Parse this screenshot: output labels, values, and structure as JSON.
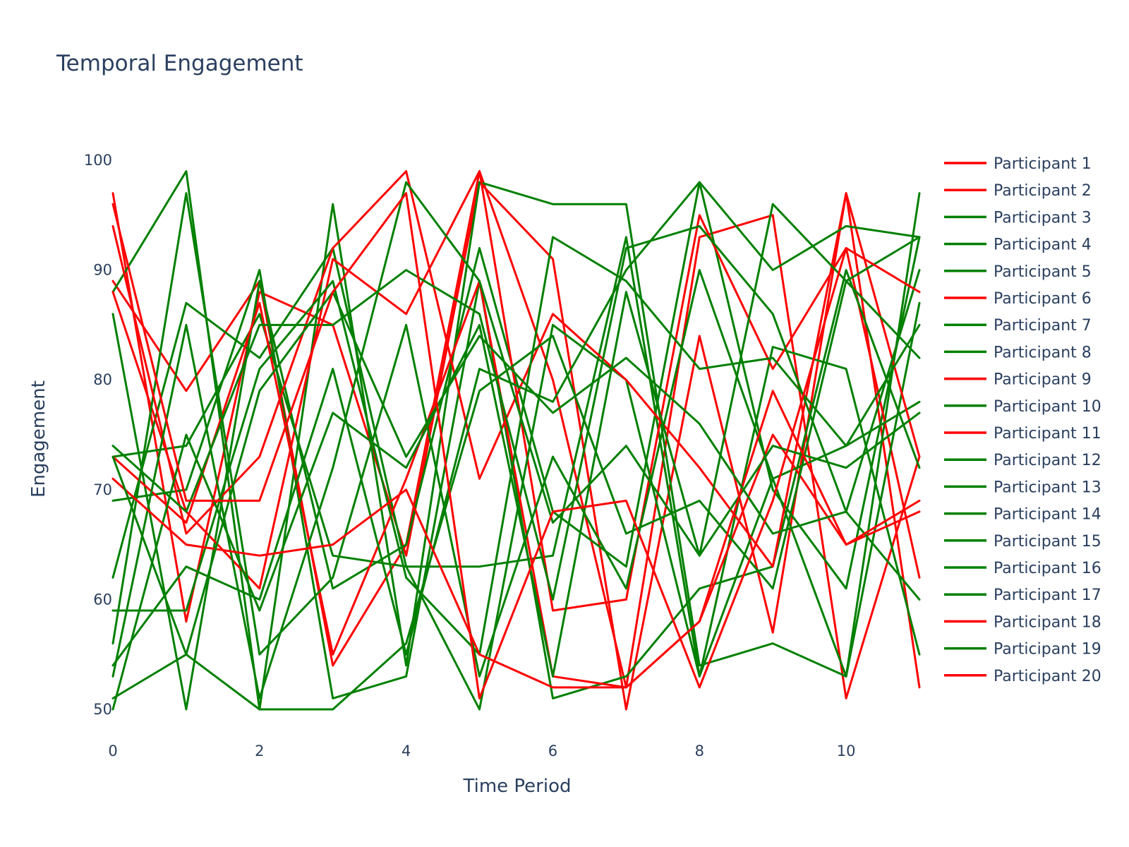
{
  "chart_data": {
    "type": "line",
    "title": "Temporal Engagement",
    "xlabel": "Time Period",
    "ylabel": "Engagement",
    "x": [
      0,
      1,
      2,
      3,
      4,
      5,
      6,
      7,
      8,
      9,
      10,
      11
    ],
    "xlim": [
      0,
      11
    ],
    "ylim": [
      50,
      100
    ],
    "x_ticks": [
      0,
      2,
      4,
      6,
      8,
      10
    ],
    "y_ticks": [
      50,
      60,
      70,
      80,
      90,
      100
    ],
    "grid": false,
    "legend_position": "right",
    "colors": {
      "red": "#ff0000",
      "green": "#008000"
    },
    "series": [
      {
        "name": "Participant 1",
        "color": "#ff0000",
        "values": [
          97,
          58,
          88,
          85,
          64,
          98,
          91,
          50,
          84,
          57,
          97,
          52
        ]
      },
      {
        "name": "Participant 2",
        "color": "#ff0000",
        "values": [
          89,
          79,
          89,
          54,
          65,
          99,
          80,
          52,
          93,
          95,
          51,
          73
        ]
      },
      {
        "name": "Participant 3",
        "color": "#008000",
        "values": [
          88,
          99,
          50,
          96,
          54,
          98,
          96,
          96,
          54,
          56,
          53,
          97
        ]
      },
      {
        "name": "Participant 4",
        "color": "#008000",
        "values": [
          86,
          50,
          89,
          61,
          65,
          92,
          68,
          63,
          98,
          70,
          61,
          93
        ]
      },
      {
        "name": "Participant 5",
        "color": "#008000",
        "values": [
          62,
          87,
          82,
          92,
          63,
          63,
          64,
          93,
          53,
          83,
          81,
          55
        ]
      },
      {
        "name": "Participant 6",
        "color": "#ff0000",
        "values": [
          88,
          68,
          61,
          91,
          86,
          99,
          59,
          60,
          95,
          81,
          92,
          62
        ]
      },
      {
        "name": "Participant 7",
        "color": "#008000",
        "values": [
          73,
          74,
          86,
          64,
          63,
          50,
          85,
          80,
          53,
          71,
          53,
          87
        ]
      },
      {
        "name": "Participant 8",
        "color": "#008000",
        "values": [
          69,
          70,
          90,
          51,
          53,
          89,
          51,
          53,
          61,
          63,
          90,
          72
        ]
      },
      {
        "name": "Participant 9",
        "color": "#ff0000",
        "values": [
          73,
          67,
          87,
          55,
          71,
          89,
          53,
          52,
          58,
          75,
          65,
          68
        ]
      },
      {
        "name": "Participant 10",
        "color": "#008000",
        "values": [
          56,
          97,
          55,
          62,
          85,
          53,
          73,
          61,
          90,
          71,
          74,
          78
        ]
      },
      {
        "name": "Participant 11",
        "color": "#ff0000",
        "values": [
          94,
          66,
          73,
          92,
          99,
          71,
          86,
          80,
          72,
          63,
          97,
          73
        ]
      },
      {
        "name": "Participant 12",
        "color": "#008000",
        "values": [
          50,
          75,
          59,
          77,
          72,
          85,
          53,
          88,
          64,
          96,
          89,
          82
        ]
      },
      {
        "name": "Participant 13",
        "color": "#008000",
        "values": [
          54,
          63,
          60,
          81,
          55,
          81,
          78,
          90,
          98,
          90,
          94,
          93
        ]
      },
      {
        "name": "Participant 14",
        "color": "#008000",
        "values": [
          74,
          68,
          85,
          85,
          90,
          86,
          60,
          92,
          94,
          86,
          68,
          60
        ]
      },
      {
        "name": "Participant 15",
        "color": "#008000",
        "values": [
          59,
          59,
          81,
          89,
          62,
          55,
          93,
          89,
          81,
          82,
          74,
          85
        ]
      },
      {
        "name": "Participant 16",
        "color": "#008000",
        "values": [
          53,
          85,
          51,
          72,
          98,
          89,
          67,
          74,
          64,
          74,
          72,
          77
        ]
      },
      {
        "name": "Participant 17",
        "color": "#008000",
        "values": [
          51,
          55,
          50,
          50,
          56,
          79,
          84,
          66,
          69,
          61,
          89,
          93
        ]
      },
      {
        "name": "Participant 18",
        "color": "#ff0000",
        "values": [
          71,
          65,
          64,
          65,
          70,
          55,
          52,
          52,
          58,
          79,
          65,
          69
        ]
      },
      {
        "name": "Participant 19",
        "color": "#008000",
        "values": [
          73,
          55,
          79,
          88,
          73,
          84,
          77,
          82,
          76,
          66,
          68,
          90
        ]
      },
      {
        "name": "Participant 20",
        "color": "#ff0000",
        "values": [
          96,
          69,
          69,
          88,
          97,
          51,
          68,
          69,
          52,
          69,
          92,
          88
        ]
      }
    ]
  }
}
